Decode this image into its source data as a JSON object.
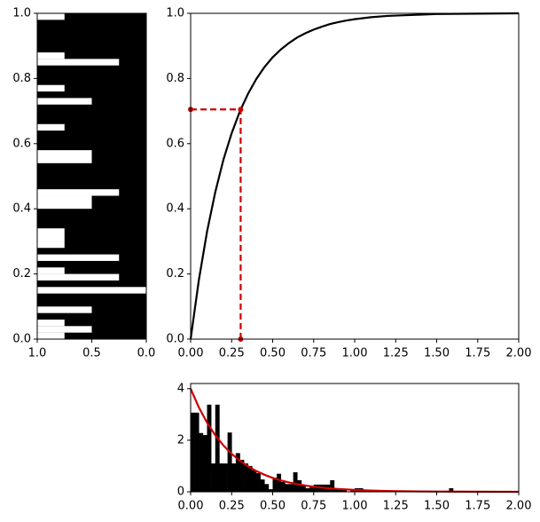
{
  "chart_data": [
    {
      "type": "bar",
      "orientation": "horizontal",
      "background": "#000000",
      "color": "#ffffff",
      "y_start": [
        0.98,
        0.86,
        0.84,
        0.76,
        0.72,
        0.64,
        0.54,
        0.44,
        0.4,
        0.28,
        0.24,
        0.2,
        0.18,
        0.14,
        0.08,
        0.04,
        0.02,
        0
      ],
      "y_end": [
        1.0,
        0.88,
        0.86,
        0.78,
        0.74,
        0.66,
        0.58,
        0.46,
        0.44,
        0.34,
        0.26,
        0.22,
        0.2,
        0.16,
        0.1,
        0.06,
        0.04,
        0.02
      ],
      "values": [
        0.75,
        0.75,
        0.25,
        0.75,
        0.5,
        0.75,
        0.5,
        0.25,
        0.5,
        0.75,
        0.25,
        0.75,
        0.25,
        0,
        0.5,
        0.75,
        0.5,
        0.75
      ],
      "xlim": [
        1,
        0
      ],
      "xticks": [
        {
          "value": 1,
          "label": "1.0"
        },
        0.5,
        {
          "value": 0,
          "label": "0.0"
        }
      ],
      "ylim": [
        0,
        1
      ],
      "yticks": [
        {
          "value": 0,
          "label": "0.0"
        },
        0.2,
        0.4,
        0.6,
        0.8,
        {
          "value": 1,
          "label": "1.0"
        }
      ]
    },
    {
      "type": "line",
      "series": [
        {
          "color": "#000000",
          "x": [
            0,
            0.05,
            0.1,
            0.15,
            0.2,
            0.25,
            0.3,
            0.35,
            0.4,
            0.45,
            0.5,
            0.55,
            0.6,
            0.65,
            0.7,
            0.75,
            0.8,
            0.85,
            0.9,
            0.95,
            1,
            1.1,
            1.2,
            1.3,
            1.4,
            1.5,
            1.75,
            2
          ],
          "values": [
            0,
            0.181,
            0.33,
            0.451,
            0.551,
            0.632,
            0.699,
            0.753,
            0.798,
            0.835,
            0.865,
            0.889,
            0.909,
            0.926,
            0.939,
            0.95,
            0.959,
            0.967,
            0.973,
            0.978,
            0.982,
            0.988,
            0.992,
            0.994,
            0.996,
            0.998,
            0.999,
            1
          ]
        },
        {
          "color": "#cc0000",
          "dashed": true,
          "markers": true,
          "x": [
            0,
            0.305,
            0.305
          ],
          "values": [
            0.705,
            0.705,
            0
          ]
        }
      ],
      "xlim": [
        0,
        2
      ],
      "xticks": [
        {
          "value": 0,
          "label": "0.00"
        },
        0.25,
        {
          "value": 0.5,
          "label": "0.50"
        },
        0.75,
        {
          "value": 1,
          "label": "1.00"
        },
        1.25,
        {
          "value": 1.5,
          "label": "1.50"
        },
        1.75,
        {
          "value": 2,
          "label": "2.00"
        }
      ],
      "ylim": [
        0,
        1
      ],
      "yticks": [
        {
          "value": 0,
          "label": "0.0"
        },
        0.2,
        0.4,
        0.6,
        0.8,
        {
          "value": 1,
          "label": "1.0"
        }
      ]
    },
    {
      "type": "histogram",
      "color": "#000000",
      "bins": [
        0,
        0.025,
        0.05,
        0.075,
        0.1,
        0.125,
        0.15,
        0.175,
        0.2,
        0.225,
        0.25,
        0.275,
        0.3,
        0.325,
        0.35,
        0.375,
        0.4,
        0.425,
        0.45,
        0.475,
        0.5,
        0.525,
        0.55,
        0.575,
        0.6,
        0.625,
        0.65,
        0.675,
        0.7,
        0.725,
        0.75,
        0.775,
        0.8,
        0.825,
        0.85,
        0.875,
        0.9,
        0.925,
        0.95,
        0.975,
        1,
        1.025,
        1.05,
        1.075,
        1.1,
        1.125,
        1.15,
        1.175,
        1.2,
        1.225,
        1.25,
        1.275,
        1.3,
        1.325,
        1.35,
        1.375,
        1.4,
        1.425,
        1.45,
        1.475,
        1.5,
        1.525,
        1.55,
        1.575,
        1.6,
        1.625
      ],
      "values": [
        3.07,
        3.07,
        2.28,
        2.2,
        3.38,
        1.1,
        3.38,
        1.1,
        1.1,
        2.3,
        1.1,
        1.5,
        1.24,
        1.1,
        1.0,
        0.83,
        0.72,
        0.48,
        0.3,
        0.1,
        0.55,
        0.7,
        0.38,
        0.3,
        0.3,
        0.76,
        0.45,
        0.28,
        0.14,
        0.2,
        0.28,
        0.28,
        0.28,
        0.28,
        0.45,
        0.1,
        0.07,
        0.07,
        0,
        0.07,
        0.14,
        0.14,
        0.07,
        0,
        0,
        0,
        0,
        0,
        0,
        0,
        0,
        0,
        0,
        0,
        0,
        0,
        0,
        0,
        0,
        0,
        0,
        0,
        0,
        0.14,
        0
      ],
      "series": [
        {
          "color": "#cc0000",
          "x": [
            0,
            0.05,
            0.1,
            0.15,
            0.2,
            0.25,
            0.3,
            0.35,
            0.4,
            0.45,
            0.5,
            0.55,
            0.6,
            0.65,
            0.7,
            0.75,
            0.8,
            0.85,
            0.9,
            0.95,
            1,
            1.1,
            1.2,
            1.3,
            1.4,
            1.5,
            1.75,
            2
          ],
          "values": [
            4,
            3.275,
            2.681,
            2.195,
            1.797,
            1.472,
            1.205,
            0.986,
            0.808,
            0.661,
            0.541,
            0.443,
            0.363,
            0.297,
            0.243,
            0.199,
            0.163,
            0.134,
            0.109,
            0.09,
            0.073,
            0.049,
            0.033,
            0.022,
            0.015,
            0.01,
            0.004,
            0.001
          ]
        }
      ],
      "xlim": [
        0,
        2
      ],
      "xticks": [
        {
          "value": 0,
          "label": "0.00"
        },
        0.25,
        {
          "value": 0.5,
          "label": "0.50"
        },
        0.75,
        {
          "value": 1,
          "label": "1.00"
        },
        1.25,
        {
          "value": 1.5,
          "label": "1.50"
        },
        1.75,
        {
          "value": 2,
          "label": "2.00"
        }
      ],
      "ylim": [
        0,
        4.2
      ],
      "yticks": [
        0,
        2,
        4
      ]
    }
  ]
}
